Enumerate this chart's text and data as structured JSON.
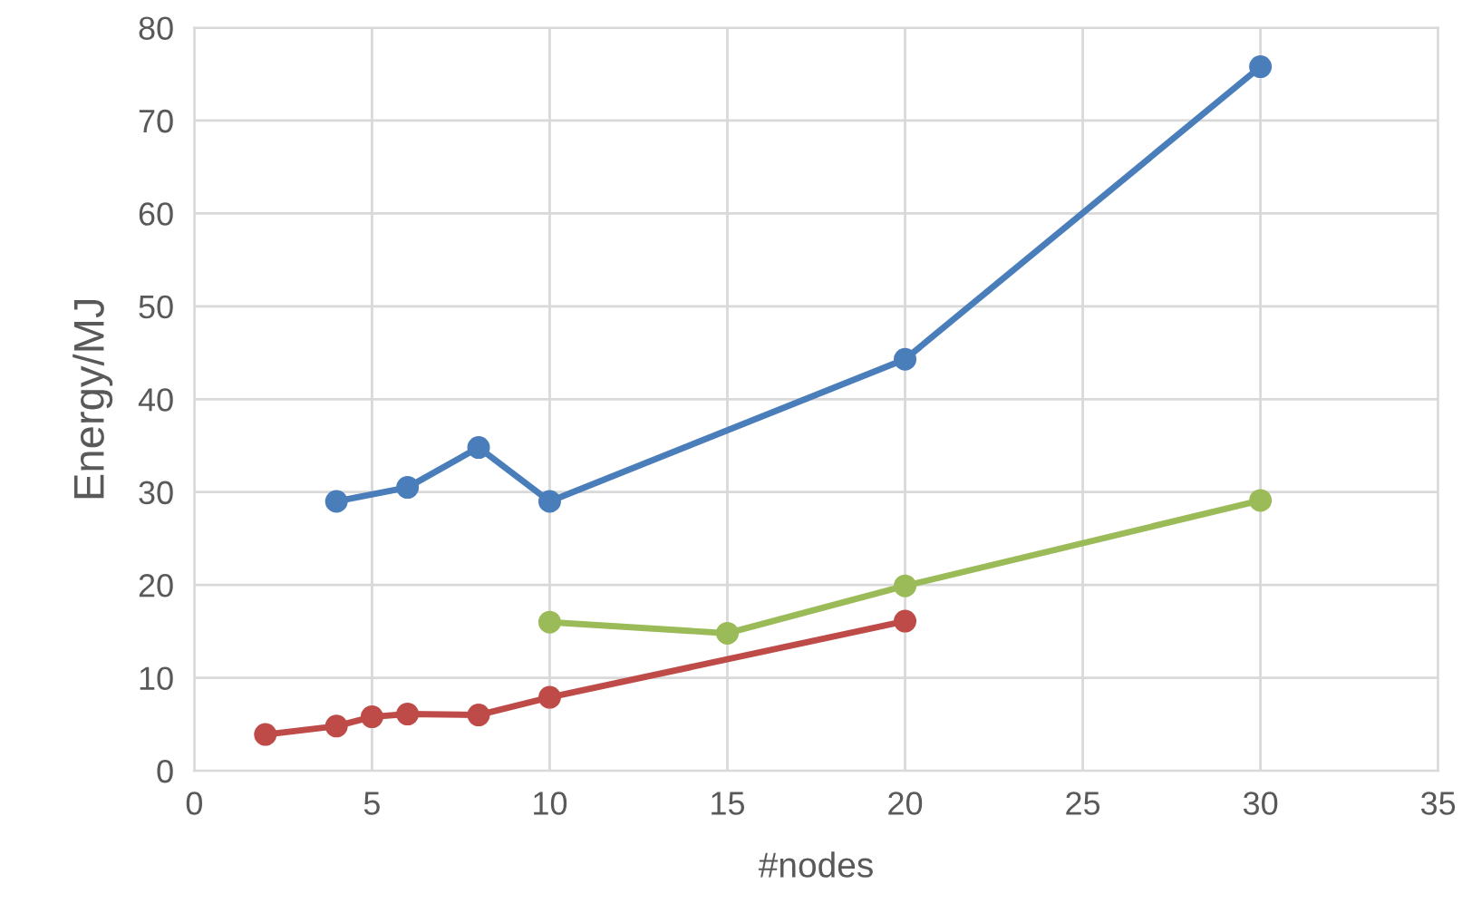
{
  "chart_data": {
    "type": "line",
    "xlabel": "#nodes",
    "ylabel": "Energy/MJ",
    "xlim": [
      0,
      35
    ],
    "xticks": [
      0,
      5,
      10,
      15,
      20,
      25,
      30,
      35
    ],
    "ylim": [
      0,
      80
    ],
    "yticks": [
      0,
      10,
      20,
      30,
      40,
      50,
      60,
      70,
      80
    ],
    "grid": true,
    "marker": "circle",
    "line_style": "solid",
    "series": [
      {
        "color": "#4a7ebb",
        "x": [
          4,
          6,
          8,
          10,
          20,
          30
        ],
        "values": [
          29.0,
          30.5,
          34.8,
          29.0,
          44.3,
          75.8
        ]
      },
      {
        "color": "#9bbb59",
        "x": [
          10,
          15,
          20,
          30
        ],
        "values": [
          16.0,
          14.8,
          19.9,
          29.1
        ]
      },
      {
        "color": "#be4b48",
        "x": [
          2,
          4,
          5,
          6,
          8,
          10,
          20
        ],
        "values": [
          3.9,
          4.8,
          5.8,
          6.1,
          6.0,
          7.9,
          16.1
        ]
      }
    ]
  }
}
